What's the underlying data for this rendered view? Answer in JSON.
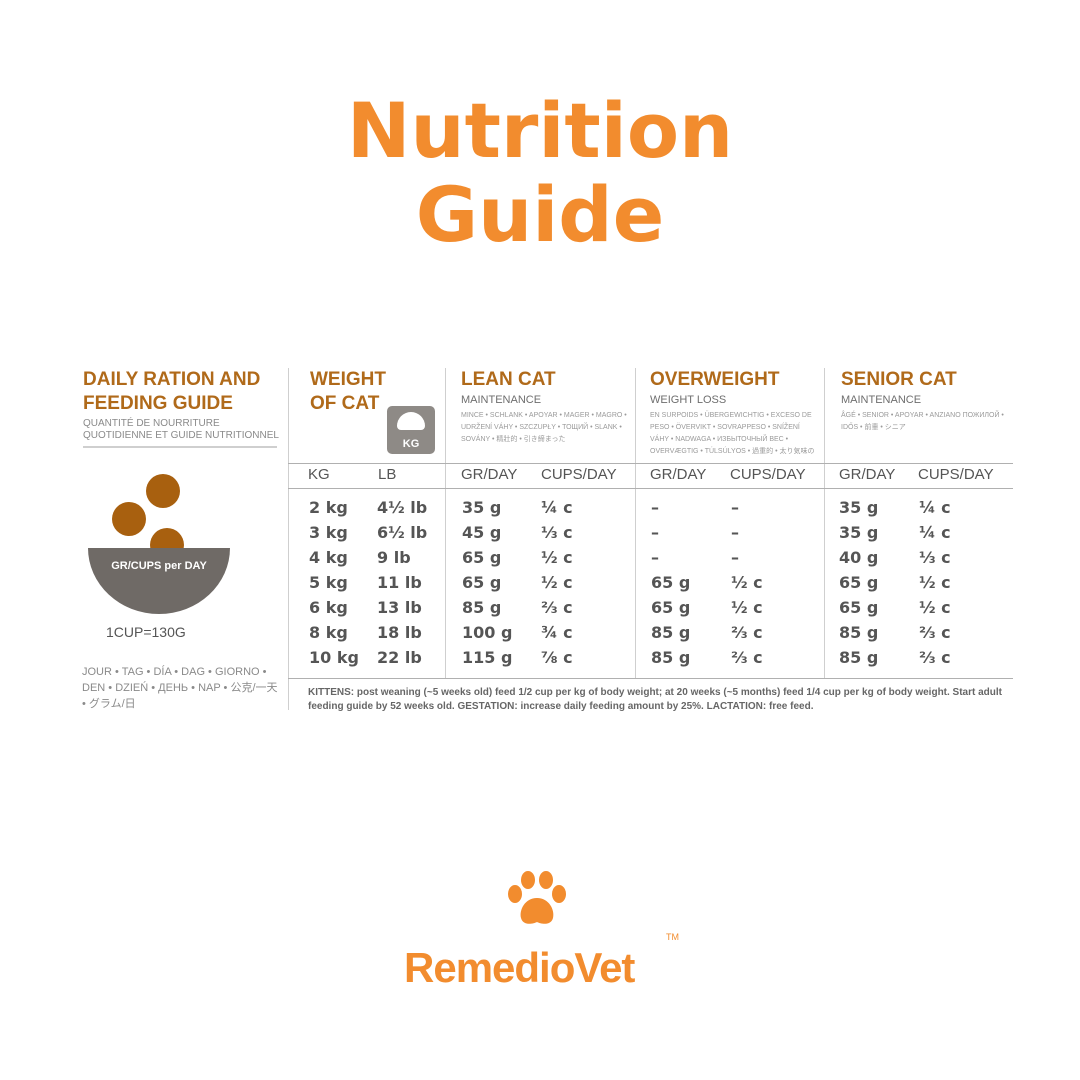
{
  "page": {
    "title_line1": "Nutrition",
    "title_line2": "Guide",
    "accent_color": "#f28c2e",
    "header_color": "#b06a1a"
  },
  "guide": {
    "heading_line1": "DAILY RATION AND",
    "heading_line2": "FEEDING GUIDE",
    "subheading_line1": "QUANTITÉ DE NOURRITURE",
    "subheading_line2": "QUOTIDIENNE ET GUIDE NUTRITIONNEL",
    "bowl_label": "GR/CUPS per DAY",
    "cup_note": "1CUP=130G",
    "languages": "JOUR • TAG • DÍA • DAG • GIORNO • DEN • DZIEŃ • ДЕНЬ • NAP • 公克/一天 • グラム/日"
  },
  "columns": {
    "weight": {
      "title_line1": "WEIGHT",
      "title_line2": "OF CAT",
      "scale_icon": "weighing-scale-icon",
      "scale_label": "KG",
      "h1": "KG",
      "h2": "LB"
    },
    "lean": {
      "title": "LEAN CAT",
      "subtitle": "MAINTENANCE",
      "translations": "MINCE • SCHLANK • APOYAR • MAGER • MAGRO • UDRŽENÍ VÁHY • SZCZUPŁY • ТОЩИЙ • SLANK • SOVÁNY • 精壯的 • 引き締まった",
      "h1": "GR/DAY",
      "h2": "CUPS/DAY"
    },
    "overweight": {
      "title": "OVERWEIGHT",
      "subtitle": "WEIGHT LOSS",
      "translations": "EN SURPOIDS • ÜBERGEWICHTIG • EXCESO DE PESO • ÖVERVIKT • SOVRAPPESO • SNÍŽENÍ VÁHY • NADWAGA • ИЗБЫТОЧНЫЙ ВЕС • OVERVÆGTIG • TÚLSÚLYOS • 過重的 • 太り気味の",
      "h1": "GR/DAY",
      "h2": "CUPS/DAY"
    },
    "senior": {
      "title": "SENIOR CAT",
      "subtitle": "MAINTENANCE",
      "translations": "ÂGÉ • SENIOR • APOYAR • ANZIANO ПОЖИЛОЙ • IDŐS • 前輩 • シニア",
      "h1": "GR/DAY",
      "h2": "CUPS/DAY"
    }
  },
  "rows": [
    {
      "kg": "2 kg",
      "lb": "4½ lb",
      "lean_gr": "35 g",
      "lean_cups": "¼ c",
      "ow_gr": "–",
      "ow_cups": "–",
      "sen_gr": "35 g",
      "sen_cups": "¼ c"
    },
    {
      "kg": "3 kg",
      "lb": "6½ lb",
      "lean_gr": "45 g",
      "lean_cups": "⅓ c",
      "ow_gr": "–",
      "ow_cups": "–",
      "sen_gr": "35 g",
      "sen_cups": "¼ c"
    },
    {
      "kg": "4 kg",
      "lb": "9 lb",
      "lean_gr": "65 g",
      "lean_cups": "½ c",
      "ow_gr": "–",
      "ow_cups": "–",
      "sen_gr": "40 g",
      "sen_cups": "⅓ c"
    },
    {
      "kg": "5 kg",
      "lb": "11 lb",
      "lean_gr": "65 g",
      "lean_cups": "½ c",
      "ow_gr": "65 g",
      "ow_cups": "½ c",
      "sen_gr": "65 g",
      "sen_cups": "½ c"
    },
    {
      "kg": "6 kg",
      "lb": "13 lb",
      "lean_gr": "85 g",
      "lean_cups": "⅔ c",
      "ow_gr": "65 g",
      "ow_cups": "½ c",
      "sen_gr": "65 g",
      "sen_cups": "½ c"
    },
    {
      "kg": "8 kg",
      "lb": "18 lb",
      "lean_gr": "100 g",
      "lean_cups": "¾ c",
      "ow_gr": "85 g",
      "ow_cups": "⅔ c",
      "sen_gr": "85 g",
      "sen_cups": "⅔ c"
    },
    {
      "kg": "10 kg",
      "lb": "22 lb",
      "lean_gr": "115 g",
      "lean_cups": "⅞ c",
      "ow_gr": "85 g",
      "ow_cups": "⅔ c",
      "sen_gr": "85 g",
      "sen_cups": "⅔ c"
    }
  ],
  "footnote": "KITTENS: post weaning (~5 weeks old) feed 1/2 cup per kg of body weight; at 20 weeks (~5 months) feed 1/4 cup per kg of body weight. Start adult feeding guide by 52 weeks old. GESTATION: increase daily feeding amount by 25%. LACTATION: free feed.",
  "brand": {
    "name": "RemedioVet",
    "tm": "TM",
    "icon": "paw-print-icon"
  }
}
